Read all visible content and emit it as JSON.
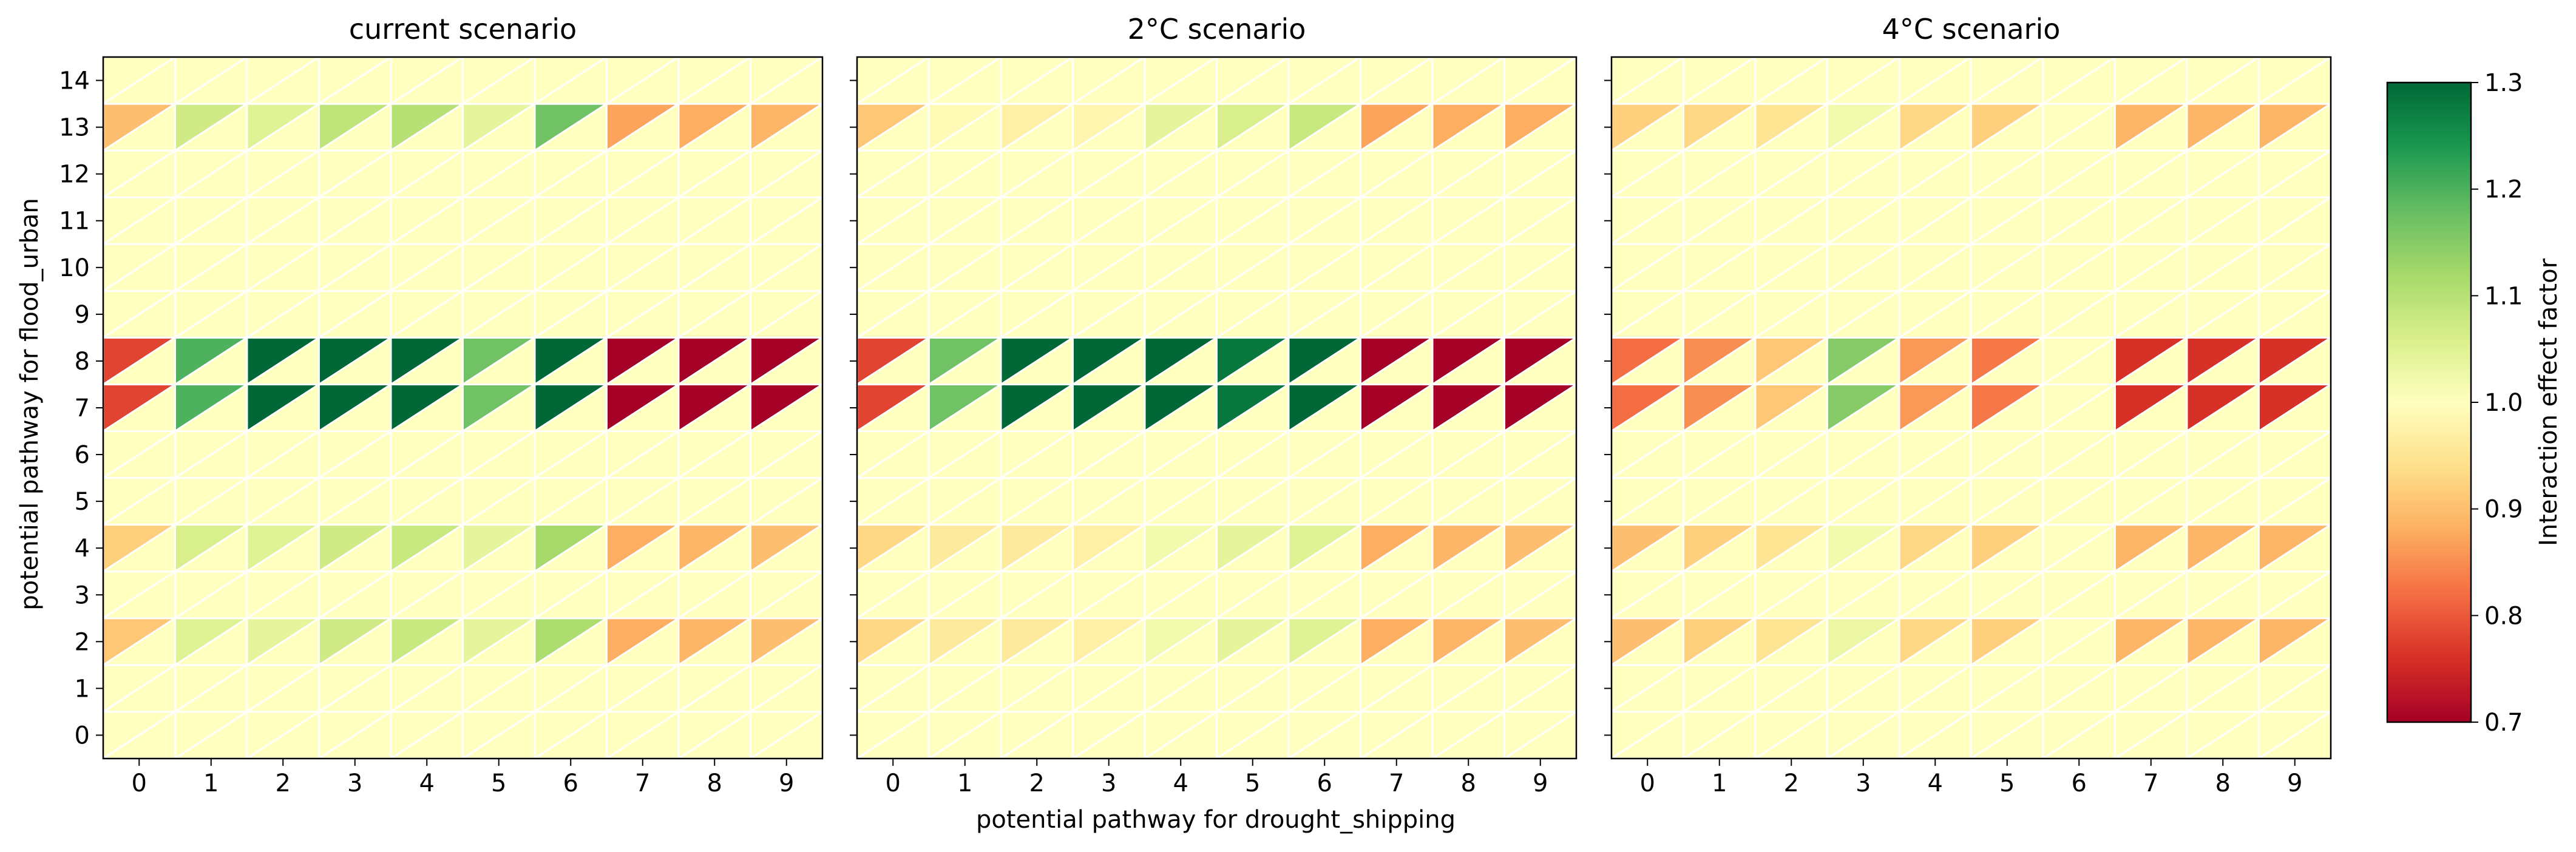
{
  "chart_data": {
    "type": "heatmap",
    "variant": "triangle-split cells (upper-left and lower-right triangle per cell)",
    "ylabel": "potential pathway for flood_urban",
    "xlabel": "potential pathway for drought_shipping",
    "x_categories": [
      "0",
      "1",
      "2",
      "3",
      "4",
      "5",
      "6",
      "7",
      "8",
      "9"
    ],
    "y_categories": [
      "0",
      "1",
      "2",
      "3",
      "4",
      "5",
      "6",
      "7",
      "8",
      "9",
      "10",
      "11",
      "12",
      "13",
      "14"
    ],
    "colorbar": {
      "label": "Interaction effect factor",
      "range": [
        0.7,
        1.3
      ],
      "ticks": [
        "0.7",
        "0.8",
        "0.9",
        "1.0",
        "1.1",
        "1.2",
        "1.3"
      ],
      "colormap": "RdYlGn"
    },
    "baseline_value": 1.0,
    "panels": [
      {
        "title": "current scenario",
        "upper_triangle_values_by_row": {
          "13": [
            0.9,
            1.07,
            1.05,
            1.09,
            1.1,
            1.04,
            1.17,
            0.87,
            0.88,
            0.89
          ],
          "8": [
            0.78,
            1.2,
            1.3,
            1.3,
            1.3,
            1.17,
            1.3,
            0.7,
            0.7,
            0.7
          ],
          "7": [
            0.78,
            1.2,
            1.3,
            1.3,
            1.3,
            1.17,
            1.3,
            0.7,
            0.7,
            0.7
          ],
          "4": [
            0.92,
            1.06,
            1.05,
            1.07,
            1.08,
            1.04,
            1.12,
            0.88,
            0.89,
            0.9
          ],
          "2": [
            0.91,
            1.05,
            1.04,
            1.07,
            1.08,
            1.04,
            1.11,
            0.88,
            0.89,
            0.9
          ]
        }
      },
      {
        "title": "2°C scenario",
        "upper_triangle_values_by_row": {
          "13": [
            0.91,
            0.99,
            0.97,
            0.98,
            1.04,
            1.06,
            1.08,
            0.87,
            0.88,
            0.88
          ],
          "8": [
            0.78,
            1.17,
            1.3,
            1.3,
            1.3,
            1.28,
            1.3,
            0.7,
            0.7,
            0.7
          ],
          "7": [
            0.78,
            1.17,
            1.3,
            1.3,
            1.3,
            1.28,
            1.3,
            0.7,
            0.7,
            0.7
          ],
          "4": [
            0.93,
            0.96,
            0.96,
            0.97,
            1.02,
            1.04,
            1.05,
            0.88,
            0.89,
            0.9
          ],
          "2": [
            0.93,
            0.96,
            0.96,
            0.97,
            1.02,
            1.04,
            1.05,
            0.88,
            0.89,
            0.9
          ]
        }
      },
      {
        "title": "4°C scenario",
        "upper_triangle_values_by_row": {
          "13": [
            0.92,
            0.93,
            0.95,
            1.02,
            0.93,
            0.92,
            1.0,
            0.89,
            0.89,
            0.89
          ],
          "8": [
            0.82,
            0.85,
            0.91,
            1.15,
            0.86,
            0.83,
            1.0,
            0.76,
            0.76,
            0.76
          ],
          "7": [
            0.82,
            0.85,
            0.91,
            1.15,
            0.86,
            0.83,
            1.0,
            0.76,
            0.76,
            0.76
          ],
          "4": [
            0.9,
            0.92,
            0.95,
            1.02,
            0.93,
            0.92,
            1.0,
            0.89,
            0.89,
            0.89
          ],
          "2": [
            0.9,
            0.92,
            0.95,
            1.03,
            0.93,
            0.92,
            1.0,
            0.89,
            0.89,
            0.89
          ]
        }
      }
    ],
    "lower_triangle_value_all_cells": 1.0
  }
}
